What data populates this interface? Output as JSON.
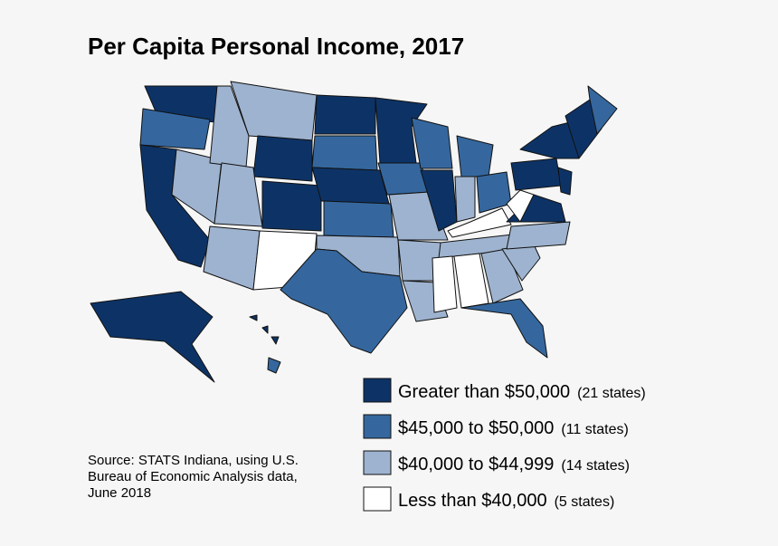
{
  "title": "Per Capita Personal Income, 2017",
  "legend": [
    {
      "label": "Greater than $50,000",
      "count": "(21 states)"
    },
    {
      "label": "$45,000 to $50,000",
      "count": "(11 states)"
    },
    {
      "label": "$40,000 to $44,999",
      "count": "(14 states)"
    },
    {
      "label": "Less than $40,000",
      "count": "(5 states)"
    }
  ],
  "source": [
    "Source: STATS Indiana, using U.S.",
    "Bureau of Economic Analysis data,",
    "June 2018"
  ]
}
